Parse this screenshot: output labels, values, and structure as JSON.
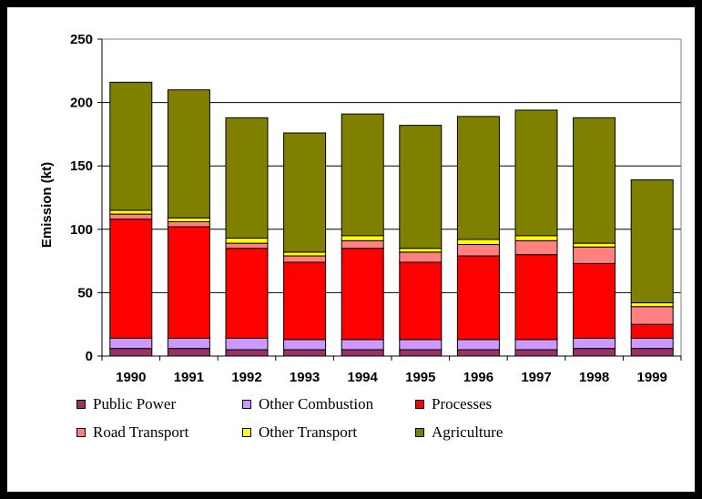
{
  "chart_data": {
    "type": "bar",
    "stacked": true,
    "categories": [
      "1990",
      "1991",
      "1992",
      "1993",
      "1994",
      "1995",
      "1996",
      "1997",
      "1998",
      "1999"
    ],
    "series": [
      {
        "name": "Public Power",
        "color": "#993366",
        "values": [
          6,
          6,
          5,
          5,
          5,
          5,
          5,
          5,
          6,
          6
        ]
      },
      {
        "name": "Other Combustion",
        "color": "#cc99ff",
        "values": [
          8,
          8,
          9,
          8,
          8,
          8,
          8,
          8,
          8,
          8
        ]
      },
      {
        "name": "Processes",
        "color": "#ff0000",
        "values": [
          94,
          88,
          71,
          61,
          72,
          61,
          66,
          67,
          59,
          11
        ]
      },
      {
        "name": "Road Transport",
        "color": "#ff8080",
        "values": [
          4,
          4,
          4,
          5,
          6,
          8,
          9,
          11,
          13,
          14
        ]
      },
      {
        "name": "Other Transport",
        "color": "#ffff00",
        "values": [
          3,
          3,
          4,
          3,
          4,
          3,
          4,
          4,
          3,
          3
        ]
      },
      {
        "name": "Agriculture",
        "color": "#808000",
        "values": [
          101,
          101,
          95,
          94,
          96,
          97,
          97,
          99,
          99,
          97
        ]
      }
    ],
    "ylabel": "Emission (kt)",
    "xlabel": "",
    "ylim": [
      0,
      250
    ],
    "yticks": [
      0,
      50,
      100,
      150,
      200,
      250
    ],
    "grid": true,
    "legend_position": "bottom"
  }
}
